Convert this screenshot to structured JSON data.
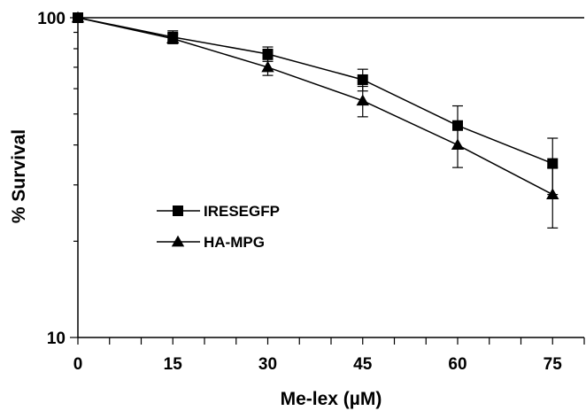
{
  "chart_data": {
    "type": "line",
    "xlabel": "Me-lex (µM)",
    "ylabel": "% Survival",
    "x": [
      0,
      15,
      30,
      45,
      60,
      75
    ],
    "x_ticks": [
      "0",
      "15",
      "30",
      "45",
      "60",
      "75"
    ],
    "xlim": [
      0,
      80
    ],
    "ylim": [
      10,
      100
    ],
    "y_scale": "log",
    "y_ticks": [
      "100",
      "10"
    ],
    "grid": false,
    "legend_position": "center-left",
    "series": [
      {
        "name": "IRESEGFP",
        "marker": "square",
        "color": "#000000",
        "values": [
          100,
          87,
          77,
          64,
          46,
          35
        ],
        "errors": [
          0,
          4,
          4,
          5,
          7,
          7
        ]
      },
      {
        "name": "HA-MPG",
        "marker": "triangle",
        "color": "#000000",
        "values": [
          100,
          86,
          70,
          55,
          40,
          28
        ],
        "errors": [
          0,
          3,
          4,
          6,
          6,
          6
        ]
      }
    ]
  }
}
